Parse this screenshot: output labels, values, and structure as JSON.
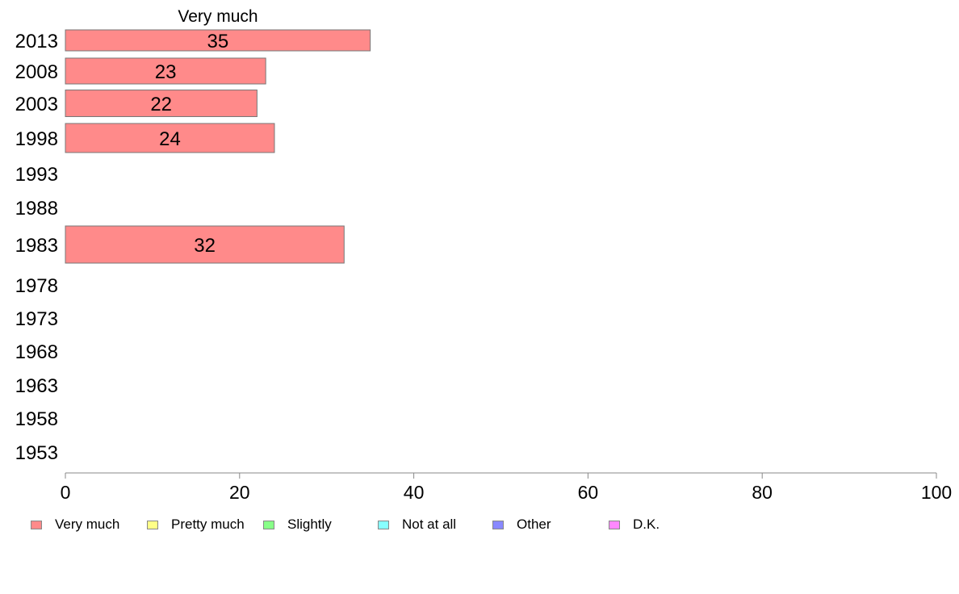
{
  "chart_data": {
    "type": "bar",
    "orientation": "horizontal",
    "title": "Very much",
    "categories": [
      "2013",
      "2008",
      "2003",
      "1998",
      "1993",
      "1988",
      "1983",
      "1978",
      "1973",
      "1968",
      "1963",
      "1958",
      "1953"
    ],
    "series": [
      {
        "name": "Very much",
        "color": "#ff8a8a",
        "values": [
          35,
          23,
          22,
          24,
          null,
          null,
          32,
          null,
          null,
          null,
          null,
          null,
          null
        ]
      }
    ],
    "xlim": [
      0,
      100
    ],
    "xticks": [
      0,
      20,
      40,
      60,
      80,
      100
    ],
    "grid": false,
    "legend": {
      "placement": "bottom",
      "entries": [
        {
          "label": "Very much",
          "color": "#ff8a8a"
        },
        {
          "label": "Pretty much",
          "color": "#ffff88"
        },
        {
          "label": "Slightly",
          "color": "#88ff88"
        },
        {
          "label": "Not at all",
          "color": "#88ffff"
        },
        {
          "label": "Other",
          "color": "#8888ff"
        },
        {
          "label": "D.K.",
          "color": "#ff88ff"
        }
      ]
    }
  }
}
